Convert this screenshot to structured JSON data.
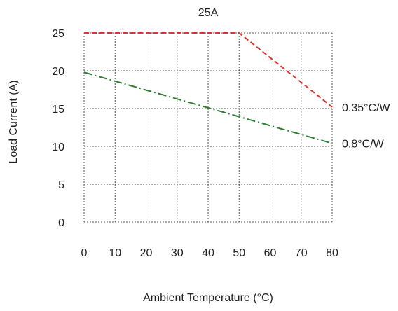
{
  "chart_data": {
    "type": "line",
    "title": "25A",
    "xlabel": "Ambient Temperature (°C)",
    "ylabel": "Load Current (A)",
    "xlim": [
      0,
      80
    ],
    "ylim": [
      0,
      25
    ],
    "xticks": [
      0,
      10,
      20,
      30,
      40,
      50,
      60,
      70,
      80
    ],
    "yticks": [
      0,
      5,
      10,
      15,
      20,
      25
    ],
    "grid": true,
    "series": [
      {
        "name": "0.35°C/W",
        "color": "#e0342c",
        "style": "dashed",
        "points": [
          [
            0,
            25
          ],
          [
            50,
            25
          ],
          [
            80,
            15.2
          ]
        ]
      },
      {
        "name": "0.8°C/W",
        "color": "#2e7d32",
        "style": "dash-dot",
        "points": [
          [
            0,
            19.8
          ],
          [
            80,
            10.4
          ]
        ]
      }
    ]
  }
}
